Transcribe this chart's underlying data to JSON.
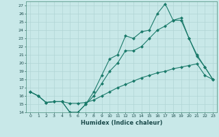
{
  "xlabel": "Humidex (Indice chaleur)",
  "bg_color": "#c8e8e8",
  "line_color": "#1a7a6a",
  "grid_color": "#b0d4d4",
  "ylim": [
    14,
    27.5
  ],
  "xlim": [
    -0.5,
    23.5
  ],
  "yticks": [
    14,
    15,
    16,
    17,
    18,
    19,
    20,
    21,
    22,
    23,
    24,
    25,
    26,
    27
  ],
  "xticks": [
    0,
    1,
    2,
    3,
    4,
    5,
    6,
    7,
    8,
    9,
    10,
    11,
    12,
    13,
    14,
    15,
    16,
    17,
    18,
    19,
    20,
    21,
    22,
    23
  ],
  "line1_x": [
    0,
    1,
    2,
    3,
    4,
    5,
    6,
    7,
    8,
    9,
    10,
    11,
    12,
    13,
    14,
    15,
    16,
    17,
    18,
    19,
    20,
    21,
    22,
    23
  ],
  "line1_y": [
    16.5,
    16.0,
    15.2,
    15.3,
    15.3,
    15.1,
    15.1,
    15.2,
    15.5,
    16.0,
    16.5,
    17.0,
    17.4,
    17.8,
    18.2,
    18.5,
    18.8,
    19.0,
    19.3,
    19.5,
    19.7,
    19.9,
    18.5,
    18.0
  ],
  "line2_x": [
    0,
    1,
    2,
    3,
    4,
    5,
    6,
    7,
    8,
    9,
    10,
    11,
    12,
    13,
    14,
    15,
    16,
    17,
    18,
    19,
    20,
    21,
    22,
    23
  ],
  "line2_y": [
    16.5,
    16.0,
    15.2,
    15.3,
    15.3,
    14.0,
    14.0,
    15.0,
    16.5,
    18.5,
    20.5,
    21.0,
    23.3,
    23.0,
    23.8,
    24.0,
    26.0,
    27.2,
    25.2,
    25.5,
    23.0,
    20.8,
    19.5,
    18.0
  ],
  "line3_x": [
    0,
    1,
    2,
    3,
    4,
    5,
    6,
    7,
    8,
    9,
    10,
    11,
    12,
    13,
    14,
    15,
    16,
    17,
    18,
    19,
    20,
    21,
    22,
    23
  ],
  "line3_y": [
    16.5,
    16.0,
    15.2,
    15.3,
    15.3,
    14.0,
    14.0,
    15.0,
    16.0,
    17.5,
    19.0,
    20.0,
    21.5,
    21.5,
    22.0,
    23.0,
    24.0,
    24.5,
    25.2,
    25.2,
    23.0,
    21.0,
    19.5,
    18.0
  ],
  "markersize": 2.5
}
